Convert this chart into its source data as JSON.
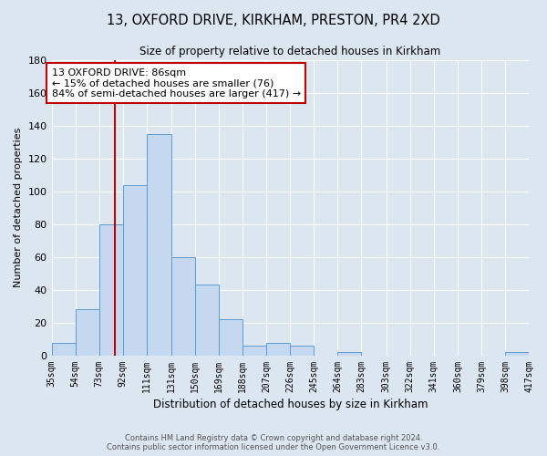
{
  "title_line1": "13, OXFORD DRIVE, KIRKHAM, PRESTON, PR4 2XD",
  "title_line2": "Size of property relative to detached houses in Kirkham",
  "xlabel": "Distribution of detached houses by size in Kirkham",
  "ylabel": "Number of detached properties",
  "bin_edges": [
    35,
    54,
    73,
    92,
    111,
    131,
    150,
    169,
    188,
    207,
    226,
    245,
    264,
    283,
    303,
    322,
    341,
    360,
    379,
    398,
    417
  ],
  "bin_labels": [
    "35sqm",
    "54sqm",
    "73sqm",
    "92sqm",
    "111sqm",
    "131sqm",
    "150sqm",
    "169sqm",
    "188sqm",
    "207sqm",
    "226sqm",
    "245sqm",
    "264sqm",
    "283sqm",
    "303sqm",
    "322sqm",
    "341sqm",
    "360sqm",
    "379sqm",
    "398sqm",
    "417sqm"
  ],
  "counts": [
    8,
    28,
    80,
    104,
    135,
    60,
    43,
    22,
    6,
    8,
    6,
    0,
    2,
    0,
    0,
    0,
    0,
    0,
    0,
    2
  ],
  "bar_color": "#c5d8f0",
  "bar_edge_color": "#5b9bd5",
  "vline_x": 86,
  "vline_color": "#c00000",
  "annotation_text": "13 OXFORD DRIVE: 86sqm\n← 15% of detached houses are smaller (76)\n84% of semi-detached houses are larger (417) →",
  "annotation_box_color": "#ffffff",
  "annotation_box_edge_color": "#c00000",
  "ylim": [
    0,
    180
  ],
  "yticks": [
    0,
    20,
    40,
    60,
    80,
    100,
    120,
    140,
    160,
    180
  ],
  "background_color": "#dce6f1",
  "grid_color": "#ffffff",
  "footer_line1": "Contains HM Land Registry data © Crown copyright and database right 2024.",
  "footer_line2": "Contains public sector information licensed under the Open Government Licence v3.0."
}
